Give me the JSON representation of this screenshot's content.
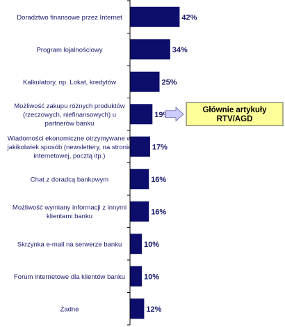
{
  "chart_data": {
    "type": "bar",
    "orientation": "horizontal",
    "categories": [
      [
        "Doradztwo finansowe przez Internet"
      ],
      [
        "Program lojalnościowy"
      ],
      [
        "Kalkulatory, np. Lokat, kredytów"
      ],
      [
        "Możliwość zakupu różnych produktów",
        "(rzeczowych, niefinansowych) u",
        "partnerów banku"
      ],
      [
        "Wiadomości ekonomiczne otrzymywane w",
        "jakikolwiek sposób (newslettery, na stronie",
        "internetowej, pocztą itp.)"
      ],
      [
        "Chat z doradcą bankowym"
      ],
      [
        "Możliwość wymiany informacji z innymi",
        "klientami banku"
      ],
      [
        "Skrzynka e-mail na serwerze banku"
      ],
      [
        "Forum internetowe dla klientów banku"
      ],
      [
        "Żadne"
      ]
    ],
    "values": [
      42,
      34,
      25,
      19,
      17,
      16,
      16,
      10,
      10,
      12
    ],
    "value_suffix": "%",
    "xlim": [
      0,
      100
    ],
    "grid": false,
    "legend": "none",
    "bar_color": "#0d0d6b",
    "label_color": "#1a1a6e",
    "annotation": {
      "target_index": 3,
      "lines": [
        "Głównie artykuły",
        "RTV/AGD"
      ],
      "box_fill": "#ffff99",
      "arrow_fill": "#ccccff"
    }
  }
}
